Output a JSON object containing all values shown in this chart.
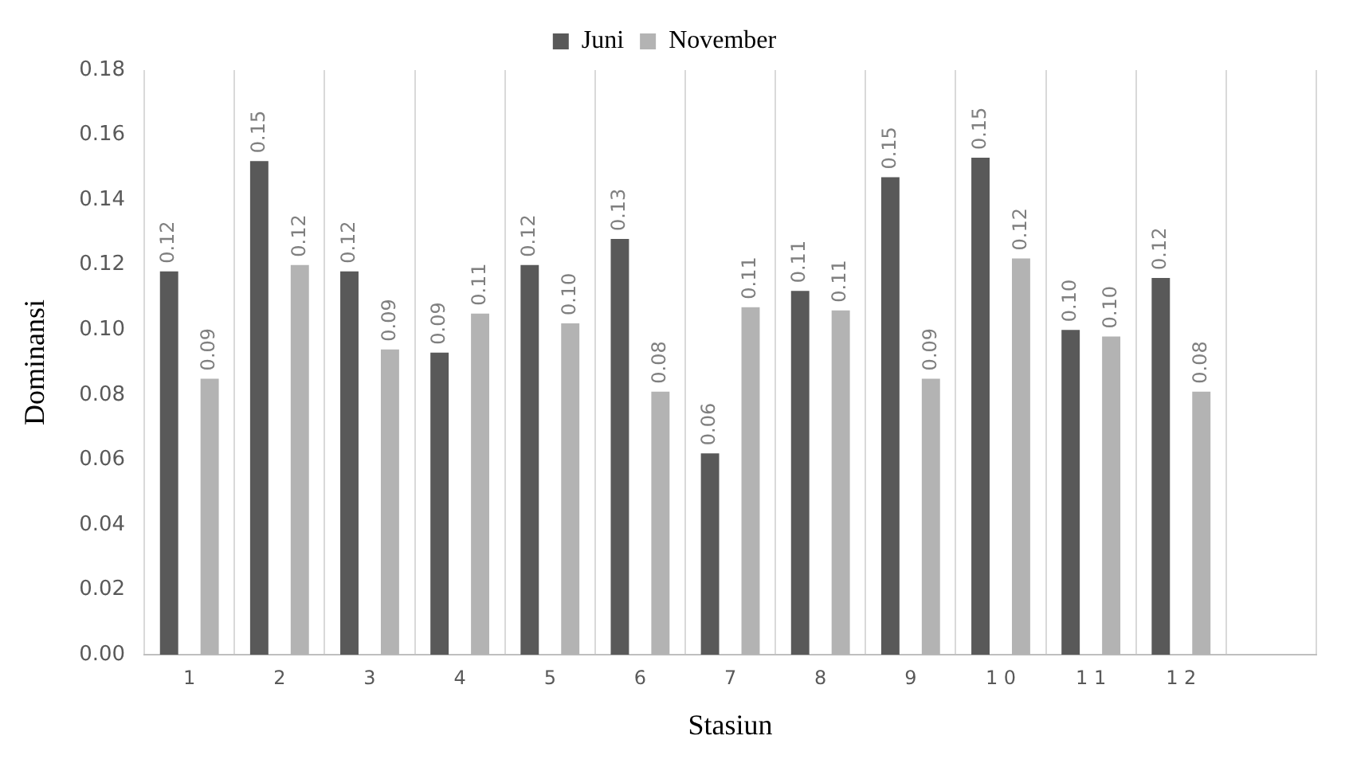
{
  "chart_data": {
    "type": "bar",
    "xlabel": "Stasiun",
    "ylabel": "Dominansi",
    "categories": [
      "1",
      "2",
      "3",
      "4",
      "5",
      "6",
      "7",
      "8",
      "9",
      "1 0",
      "1 1",
      "1 2",
      null
    ],
    "series": [
      {
        "name": "Juni",
        "color": "#595959",
        "values": [
          0.118,
          0.152,
          0.118,
          0.093,
          0.12,
          0.128,
          0.062,
          0.112,
          0.147,
          0.153,
          0.1,
          0.116,
          null
        ],
        "value_labels": [
          "0.12",
          "0.15",
          "0.12",
          "0.09",
          "0.12",
          "0.13",
          "0.06",
          "0.11",
          "0.15",
          "0.15",
          "0.10",
          "0.12",
          null
        ]
      },
      {
        "name": "November",
        "color": "#b3b3b3",
        "values": [
          0.085,
          0.12,
          0.094,
          0.105,
          0.102,
          0.081,
          0.107,
          0.106,
          0.085,
          0.122,
          0.098,
          0.081,
          null
        ],
        "value_labels": [
          "0.09",
          "0.12",
          "0.09",
          "0.11",
          "0.10",
          "0.08",
          "0.11",
          "0.11",
          "0.09",
          "0.12",
          "0.10",
          "0.08",
          null
        ]
      }
    ],
    "ylim": [
      0,
      0.18
    ],
    "yticks": [
      {
        "value": 0,
        "label": "0.00"
      },
      {
        "value": 0.02,
        "label": "0.02"
      },
      {
        "value": 0.04,
        "label": "0.04"
      },
      {
        "value": 0.06,
        "label": "0.06"
      },
      {
        "value": 0.08,
        "label": "0.08"
      },
      {
        "value": 0.1,
        "label": "0.10"
      },
      {
        "value": 0.12,
        "label": "0.12"
      },
      {
        "value": 0.14,
        "label": "0.14"
      },
      {
        "value": 0.16,
        "label": "0.16"
      },
      {
        "value": 0.18,
        "label": "0.18"
      }
    ],
    "grid": "x",
    "legend": "top"
  }
}
